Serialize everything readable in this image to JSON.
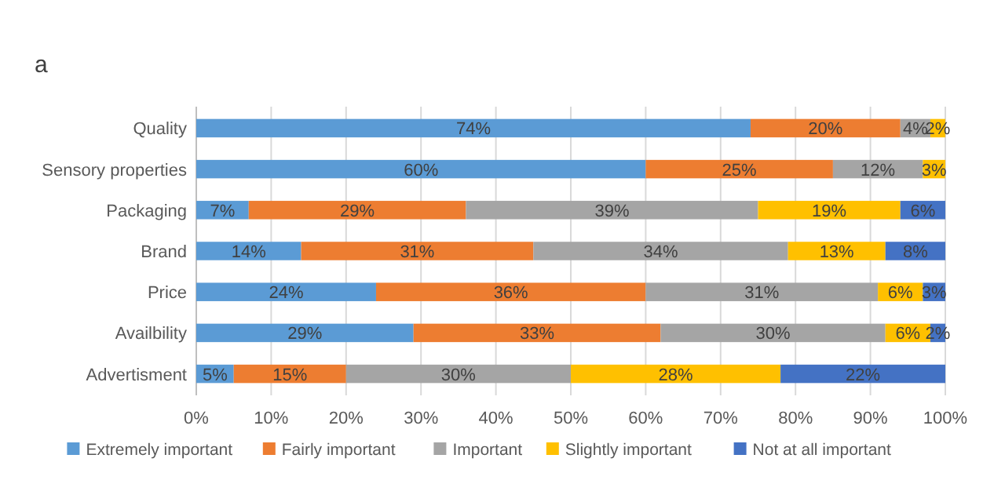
{
  "chart_data": {
    "type": "bar",
    "title": "a",
    "orientation": "horizontal",
    "stacked": true,
    "grid": "x",
    "legend": "bottom",
    "categories": [
      "Quality",
      "Sensory properties",
      "Packaging",
      "Brand",
      "Price",
      "Availbility",
      "Advertisment"
    ],
    "xlim": [
      0,
      100
    ],
    "xticks": [
      {
        "value": 0,
        "label": "0%"
      },
      {
        "value": 10,
        "label": "10%"
      },
      {
        "value": 20,
        "label": "20%"
      },
      {
        "value": 30,
        "label": "30%"
      },
      {
        "value": 40,
        "label": "40%"
      },
      {
        "value": 50,
        "label": "50%"
      },
      {
        "value": 60,
        "label": "60%"
      },
      {
        "value": 70,
        "label": "70%"
      },
      {
        "value": 80,
        "label": "80%"
      },
      {
        "value": 90,
        "label": "90%"
      },
      {
        "value": 100,
        "label": "100%"
      }
    ],
    "series": [
      {
        "name": "Extremely important",
        "color": "#5b9bd5",
        "values": [
          74,
          60,
          7,
          14,
          24,
          29,
          5
        ],
        "value_labels": [
          "74%",
          "60%",
          "7%",
          "14%",
          "24%",
          "29%",
          "5%"
        ]
      },
      {
        "name": "Fairly important",
        "color": "#ed7d31",
        "values": [
          20,
          25,
          29,
          31,
          36,
          33,
          15
        ],
        "value_labels": [
          "20%",
          "25%",
          "29%",
          "31%",
          "36%",
          "33%",
          "15%"
        ]
      },
      {
        "name": "Important",
        "color": "#a5a5a5",
        "values": [
          4,
          12,
          39,
          34,
          31,
          30,
          30
        ],
        "value_labels": [
          "4%",
          "12%",
          "39%",
          "34%",
          "31%",
          "30%",
          "30%"
        ]
      },
      {
        "name": "Slightly important",
        "color": "#ffc000",
        "values": [
          2,
          3,
          19,
          13,
          6,
          6,
          28
        ],
        "value_labels": [
          "2%",
          "3%",
          "19%",
          "13%",
          "6%",
          "6%",
          "28%"
        ]
      },
      {
        "name": "Not at all important",
        "color": "#4472c4",
        "values": [
          null,
          null,
          6,
          8,
          3,
          2,
          22
        ],
        "value_labels": [
          null,
          null,
          "6%",
          "8%",
          "3%",
          "2%",
          "22%"
        ]
      }
    ]
  }
}
